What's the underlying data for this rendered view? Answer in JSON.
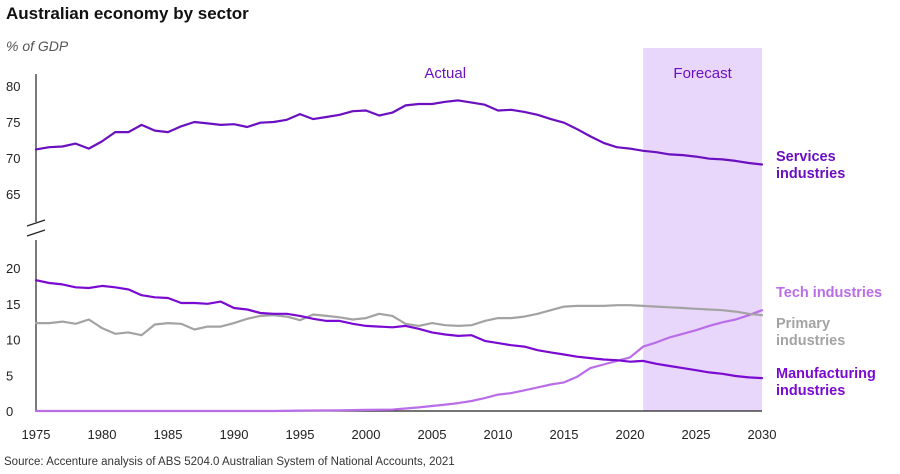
{
  "chart_data": {
    "type": "line",
    "title": "Australian economy by sector",
    "subtitle": "% of GDP",
    "source": "Source: Accenture analysis of ABS 5204.0 Australian System of National Accounts, 2021",
    "xlim": [
      1975,
      2030
    ],
    "x_ticks": [
      "1975",
      "1980",
      "1985",
      "1990",
      "1995",
      "2000",
      "2005",
      "2010",
      "2015",
      "2020",
      "2025",
      "2030"
    ],
    "y_ticks_upper": [
      "80",
      "75",
      "70",
      "65"
    ],
    "y_ticks_lower": [
      "20",
      "15",
      "10",
      "5",
      "0"
    ],
    "ylim_upper": [
      63,
      82
    ],
    "ylim_lower": [
      0,
      21
    ],
    "axis_break": true,
    "grid": false,
    "regions": [
      {
        "label": "Actual",
        "from": 1975,
        "to": 2021,
        "shaded": false
      },
      {
        "label": "Forecast",
        "from": 2021,
        "to": 2030,
        "shaded": true,
        "color": "#e9d6fb"
      }
    ],
    "series": [
      {
        "name": "Services industries",
        "label_lines": [
          "Services",
          "industries"
        ],
        "color": "#6b10c0",
        "axis": "upper",
        "x": [
          1975,
          1976,
          1977,
          1978,
          1979,
          1980,
          1981,
          1982,
          1983,
          1984,
          1985,
          1986,
          1987,
          1988,
          1989,
          1990,
          1991,
          1992,
          1993,
          1994,
          1995,
          1996,
          1997,
          1998,
          1999,
          2000,
          2001,
          2002,
          2003,
          2004,
          2005,
          2006,
          2007,
          2008,
          2009,
          2010,
          2011,
          2012,
          2013,
          2014,
          2015,
          2016,
          2017,
          2018,
          2019,
          2020,
          2021,
          2022,
          2023,
          2024,
          2025,
          2026,
          2027,
          2028,
          2029,
          2030
        ],
        "values": [
          71.2,
          71.5,
          71.6,
          72.0,
          71.3,
          72.3,
          73.6,
          73.6,
          74.6,
          73.8,
          73.6,
          74.4,
          75.0,
          74.8,
          74.6,
          74.7,
          74.3,
          74.9,
          75.0,
          75.3,
          76.1,
          75.4,
          75.7,
          76.0,
          76.5,
          76.6,
          75.9,
          76.3,
          77.3,
          77.5,
          77.5,
          77.8,
          78.0,
          77.7,
          77.4,
          76.6,
          76.7,
          76.4,
          76.0,
          75.4,
          74.9,
          74.0,
          73.0,
          72.1,
          71.5,
          71.3,
          71.0,
          70.8,
          70.5,
          70.4,
          70.2,
          69.9,
          69.8,
          69.6,
          69.3,
          69.1
        ]
      },
      {
        "name": "Tech industries",
        "label_lines": [
          "Tech industries"
        ],
        "color": "#b96ee8",
        "axis": "lower",
        "x": [
          1975,
          1980,
          1985,
          1990,
          1993,
          1995,
          1998,
          2000,
          2002,
          2003,
          2004,
          2005,
          2006,
          2007,
          2008,
          2009,
          2010,
          2011,
          2012,
          2013,
          2014,
          2015,
          2016,
          2017,
          2018,
          2019,
          2020,
          2021,
          2022,
          2023,
          2024,
          2025,
          2026,
          2027,
          2028,
          2029,
          2030
        ],
        "values": [
          0,
          0,
          0,
          0,
          0,
          0.05,
          0.1,
          0.15,
          0.2,
          0.35,
          0.5,
          0.7,
          0.9,
          1.1,
          1.4,
          1.8,
          2.3,
          2.5,
          2.9,
          3.3,
          3.7,
          4.0,
          4.8,
          6.0,
          6.5,
          7.0,
          7.5,
          9.0,
          9.6,
          10.3,
          10.8,
          11.3,
          11.9,
          12.4,
          12.8,
          13.4,
          14.1
        ]
      },
      {
        "name": "Primary industries",
        "label_lines": [
          "Primary",
          "industries"
        ],
        "color": "#a3a3a3",
        "axis": "lower",
        "x": [
          1975,
          1976,
          1977,
          1978,
          1979,
          1980,
          1981,
          1982,
          1983,
          1984,
          1985,
          1986,
          1987,
          1988,
          1989,
          1990,
          1991,
          1992,
          1993,
          1994,
          1995,
          1996,
          1997,
          1998,
          1999,
          2000,
          2001,
          2002,
          2003,
          2004,
          2005,
          2006,
          2007,
          2008,
          2009,
          2010,
          2011,
          2012,
          2013,
          2014,
          2015,
          2016,
          2017,
          2018,
          2019,
          2020,
          2021,
          2022,
          2023,
          2024,
          2025,
          2026,
          2027,
          2028,
          2029,
          2030
        ],
        "values": [
          12.3,
          12.3,
          12.5,
          12.2,
          12.8,
          11.6,
          10.8,
          11.0,
          10.6,
          12.1,
          12.3,
          12.2,
          11.4,
          11.8,
          11.8,
          12.3,
          12.9,
          13.3,
          13.4,
          13.2,
          12.7,
          13.5,
          13.3,
          13.1,
          12.8,
          13.0,
          13.6,
          13.3,
          12.2,
          11.9,
          12.3,
          12.0,
          11.9,
          12.0,
          12.6,
          13.0,
          13.0,
          13.2,
          13.6,
          14.1,
          14.6,
          14.7,
          14.7,
          14.7,
          14.8,
          14.8,
          14.7,
          14.6,
          14.5,
          14.4,
          14.3,
          14.2,
          14.1,
          13.9,
          13.6,
          13.4
        ]
      },
      {
        "name": "Manufacturing industries",
        "label_lines": [
          "Manufacturing",
          "industries"
        ],
        "color": "#7a0ad2",
        "axis": "lower",
        "x": [
          1975,
          1976,
          1977,
          1978,
          1979,
          1980,
          1981,
          1982,
          1983,
          1984,
          1985,
          1986,
          1987,
          1988,
          1989,
          1990,
          1991,
          1992,
          1993,
          1994,
          1995,
          1996,
          1997,
          1998,
          1999,
          2000,
          2001,
          2002,
          2003,
          2004,
          2005,
          2006,
          2007,
          2008,
          2009,
          2010,
          2011,
          2012,
          2013,
          2014,
          2015,
          2016,
          2017,
          2018,
          2019,
          2020,
          2021,
          2022,
          2023,
          2024,
          2025,
          2026,
          2027,
          2028,
          2029,
          2030
        ],
        "values": [
          18.3,
          17.9,
          17.7,
          17.3,
          17.2,
          17.5,
          17.3,
          17.0,
          16.2,
          15.9,
          15.8,
          15.1,
          15.1,
          15.0,
          15.3,
          14.4,
          14.2,
          13.7,
          13.6,
          13.6,
          13.3,
          12.9,
          12.6,
          12.6,
          12.2,
          11.9,
          11.8,
          11.7,
          11.9,
          11.5,
          11.0,
          10.7,
          10.5,
          10.6,
          9.8,
          9.5,
          9.2,
          9.0,
          8.5,
          8.2,
          7.9,
          7.6,
          7.4,
          7.2,
          7.1,
          6.9,
          7.0,
          6.6,
          6.3,
          6.0,
          5.7,
          5.4,
          5.2,
          4.9,
          4.7,
          4.6
        ]
      }
    ]
  }
}
